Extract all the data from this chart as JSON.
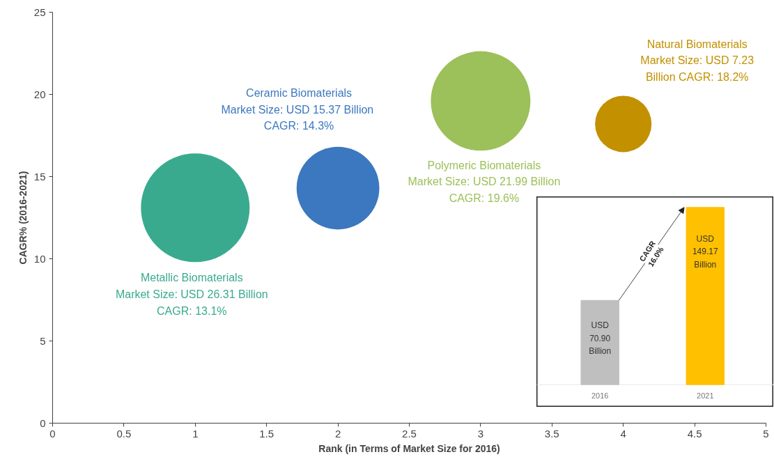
{
  "chart_data": [
    {
      "type": "bubble",
      "xlabel": "Rank (in Terms of Market Size for 2016)",
      "ylabel": "CAGR% (2016-2021)",
      "x": [
        1,
        2,
        3,
        4
      ],
      "values": [
        13.1,
        14.3,
        19.6,
        18.2
      ],
      "sizes": [
        1,
        0.58,
        0.84,
        0.27
      ],
      "colors": [
        "#3aaa8f",
        "#3b78bf",
        "#9cc05a",
        "#c39000"
      ],
      "xlim": [
        0,
        5
      ],
      "xticks": [
        0,
        0.5,
        1,
        1.5,
        2,
        2.5,
        3,
        3.5,
        4,
        4.5,
        5
      ],
      "ylim": [
        0,
        25
      ],
      "yticks": [
        0,
        5,
        10,
        15,
        20,
        25
      ],
      "grid": false,
      "annotations": [
        "Metallic Biomaterials\nMarket Size: USD 26.31 Billion\nCAGR: 13.1%",
        "Ceramic Biomaterials\nMarket Size: USD 15.37  Billion\nCAGR: 14.3%",
        "Polymeric Biomaterials\nMarket Size: USD 21.99 Billion\nCAGR: 19.6%",
        "Natural Biomaterials\nMarket Size: USD 7.23\nBillion CAGR: 18.2%"
      ]
    },
    {
      "type": "bar",
      "categories": [
        "2016",
        "2021"
      ],
      "values": [
        70.9,
        149.17
      ],
      "colors": [
        "#bfbfbf",
        "#ffc000"
      ],
      "value_labels": [
        "USD\n70.90\nBillion",
        "USD\n149.17\nBillion"
      ],
      "tick_labels": "x",
      "annotations": [
        "CAGR\n16.0%"
      ]
    }
  ]
}
